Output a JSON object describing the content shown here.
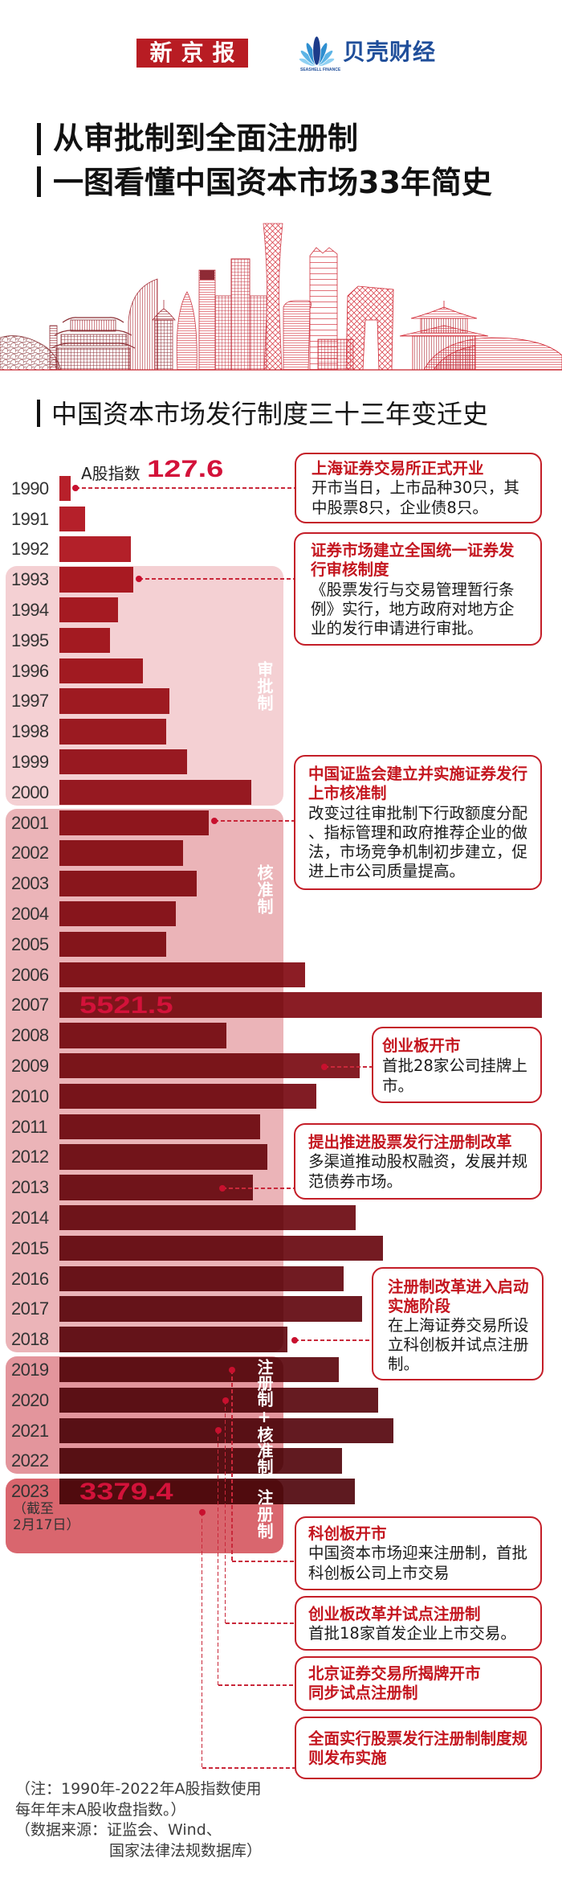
{
  "header": {
    "logo_newspaper": "新京报",
    "logo_brand": "贝壳财经",
    "logo_brand_sub": "SEASHELL FINANCE",
    "logo_brand_icon": "seashell-icon"
  },
  "title": {
    "line1": "从审批制到全面注册制",
    "line2": "一图看懂中国资本市场33年简史"
  },
  "section_title": "中国资本市场发行制度三十三年变迁史",
  "chart_labels": {
    "series_label": "A股指数",
    "value_1990": "127.6",
    "value_2007": "5521.5",
    "value_2023": "3379.4",
    "year_2023_note_line1": "（截至",
    "year_2023_note_line2": "2月17日）"
  },
  "regions": [
    {
      "label": "审批制"
    },
    {
      "label": "核准制"
    },
    {
      "label": "注册制+核准制"
    },
    {
      "label": "注册制"
    }
  ],
  "callouts": [
    {
      "title_lines": [
        "上海证券交易所正式开业"
      ],
      "body_lines": [
        "开市当日，上市品种30只，其",
        "中股票8只，企业债8只。"
      ]
    },
    {
      "title_lines": [
        "证券市场建立全国统一证券发",
        "行审核制度"
      ],
      "body_lines": [
        "《股票发行与交易管理暂行条",
        "例》实行，地方政府对地方企",
        "业的发行申请进行审批。"
      ]
    },
    {
      "title_lines": [
        "中国证监会建立并实施证券发行",
        "上市核准制"
      ],
      "body_lines": [
        "改变过往审批制下行政额度分配",
        "、指标管理和政府推荐企业的做",
        "法，市场竞争机制初步建立，促",
        "进上市公司质量提高。"
      ]
    },
    {
      "title_lines": [
        "创业板开市"
      ],
      "body_lines": [
        "首批28家公司挂牌上",
        "市。"
      ]
    },
    {
      "title_lines": [
        "提出推进股票发行注册制改革"
      ],
      "body_lines": [
        "多渠道推动股权融资，发展并规",
        "范债券市场。"
      ]
    },
    {
      "title_lines": [
        "注册制改革进入启动",
        "实施阶段"
      ],
      "body_lines": [
        "在上海证券交易所设",
        "立科创板并试点注册",
        "制。"
      ]
    },
    {
      "title_lines": [
        "科创板开市"
      ],
      "body_lines": [
        "中国资本市场迎来注册制，首批",
        "科创板公司上市交易"
      ]
    },
    {
      "title_lines": [
        "创业板改革并试点注册制"
      ],
      "body_lines": [
        "首批18家首发企业上市交易。"
      ]
    },
    {
      "title_lines": [
        "北京证券交易所揭牌开市",
        "同步试点注册制"
      ],
      "body_lines": []
    },
    {
      "title_lines": [
        "全面实行股票发行注册制制度规",
        "则发布实施"
      ],
      "body_lines": []
    }
  ],
  "notes": [
    "（注：1990年-2022年A股指数使用",
    "每年年末A股收盘指数。）",
    "（数据来源：证监会、Wind、",
    "国家法律法规数据库）"
  ],
  "colors": {
    "brand_red": "#b81c23",
    "brand_blue": "#1f4e9a",
    "callout_title_red": "#c4161f",
    "highlight_number": "#d3123a",
    "bar_start": "#b8202a",
    "bar_end": "#5e1a20",
    "region_approval": "#f4d0d3",
    "region_verification": "#ebb4b8",
    "region_mixed": "#e3959c",
    "region_registration": "#d9666e"
  },
  "chart_data": {
    "type": "bar",
    "orientation": "horizontal",
    "title": "中国资本市场发行制度三十三年变迁史",
    "xlabel": "",
    "ylabel": "",
    "grid": false,
    "legend": null,
    "categories": [
      "1990",
      "1991",
      "1992",
      "1993",
      "1994",
      "1995",
      "1996",
      "1997",
      "1998",
      "1999",
      "2000",
      "2001",
      "2002",
      "2003",
      "2004",
      "2005",
      "2006",
      "2007",
      "2008",
      "2009",
      "2010",
      "2011",
      "2012",
      "2013",
      "2014",
      "2015",
      "2016",
      "2017",
      "2018",
      "2019",
      "2020",
      "2021",
      "2022",
      "2023"
    ],
    "values": [
      127.6,
      294,
      818,
      846,
      671,
      579,
      956,
      1259,
      1222,
      1461,
      2197,
      1710,
      1415,
      1572,
      1333,
      1222,
      2812,
      5521.5,
      1912,
      3437,
      2942,
      2300,
      2376,
      2211,
      3389,
      3705,
      3249,
      3462,
      2609,
      3196,
      3643,
      3820,
      3237,
      3379.4
    ],
    "series": [
      {
        "name": "A股指数",
        "values": [
          127.6,
          294,
          818,
          846,
          671,
          579,
          956,
          1259,
          1222,
          1461,
          2197,
          1710,
          1415,
          1572,
          1333,
          1222,
          2812,
          5521.5,
          1912,
          3437,
          2942,
          2300,
          2376,
          2211,
          3389,
          3705,
          3249,
          3462,
          2609,
          3196,
          3643,
          3820,
          3237,
          3379.4
        ]
      }
    ],
    "data_labels": {
      "1990": "127.6",
      "2007": "5521.5",
      "2023": "3379.4"
    },
    "category_notes": {
      "2023": "（截至2月17日）"
    },
    "periods": [
      {
        "label": "审批制",
        "start": "1993",
        "end": "2000"
      },
      {
        "label": "核准制",
        "start": "2001",
        "end": "2018"
      },
      {
        "label": "注册制+核准制",
        "start": "2019",
        "end": "2022"
      },
      {
        "label": "注册制",
        "start": "2023",
        "end": "2023"
      }
    ],
    "xlim": [
      0,
      5521.5
    ]
  }
}
